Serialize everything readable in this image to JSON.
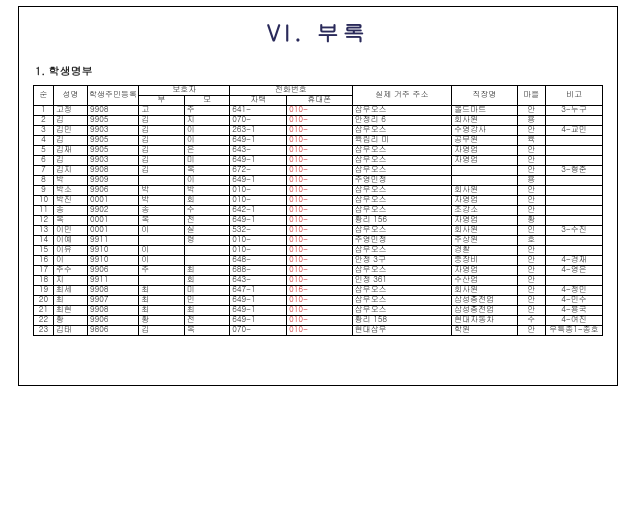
{
  "title": "VI. 부록",
  "section": "1. 학생명부",
  "headers": {
    "num": "순",
    "name": "성명",
    "idno": "학생주민등록번호",
    "guardian": "보호자",
    "gfather": "부",
    "gmother": "모",
    "phone": "전화번호",
    "phone_home": "자택",
    "phone_mobile": "휴대폰",
    "addr": "실제 거주 주소",
    "job": "직장명",
    "village": "마을",
    "note": "비고"
  },
  "rows": [
    {
      "n": "1",
      "nm": "고정",
      "id": "9908",
      "gf": "고",
      "gm": "주",
      "hp": "641-",
      "mp": "010-",
      "ad": "삼우오스",
      "jb": "올드마트",
      "vl": "안",
      "nt": "3-누구"
    },
    {
      "n": "2",
      "nm": "김",
      "id": "9905",
      "gf": "김",
      "gm": "지",
      "hp": "070-",
      "mp": "010-",
      "ad": "안정리 6",
      "jb": "회사원",
      "vl": "용",
      "nt": ""
    },
    {
      "n": "3",
      "nm": "김민",
      "id": "9903",
      "gf": "김",
      "gm": "이",
      "hp": "263-1",
      "mp": "010-",
      "ad": "삼우오스",
      "jb": "수영강사",
      "vl": "안",
      "nt": "4-교민"
    },
    {
      "n": "4",
      "nm": "김",
      "id": "9905",
      "gf": "김",
      "gm": "이",
      "hp": "649-1",
      "mp": "010-",
      "ad": "육림리 미",
      "jb": "공무원",
      "vl": "육",
      "nt": ""
    },
    {
      "n": "5",
      "nm": "김재",
      "id": "9905",
      "gf": "김",
      "gm": "은",
      "hp": "643-",
      "mp": "010-",
      "ad": "삼우오스",
      "jb": "자영업",
      "vl": "안",
      "nt": ""
    },
    {
      "n": "6",
      "nm": "김",
      "id": "9903",
      "gf": "김",
      "gm": "미",
      "hp": "649-1",
      "mp": "010-",
      "ad": "삼우오스",
      "jb": "자영업",
      "vl": "안",
      "nt": ""
    },
    {
      "n": "7",
      "nm": "김지",
      "id": "9908",
      "gf": "김",
      "gm": "옥",
      "hp": "672-",
      "mp": "010-",
      "ad": "삼우오스",
      "jb": "",
      "vl": "안",
      "nt": "3-형준"
    },
    {
      "n": "8",
      "nm": "박",
      "id": "9909",
      "gf": "",
      "gm": "이",
      "hp": "649-1",
      "mp": "010-",
      "ad": "주영민정",
      "jb": "",
      "vl": "용",
      "nt": ""
    },
    {
      "n": "9",
      "nm": "박소",
      "id": "9906",
      "gf": "박",
      "gm": "박",
      "hp": "010-",
      "mp": "010-",
      "ad": "삼우오스",
      "jb": "회사원",
      "vl": "안",
      "nt": ""
    },
    {
      "n": "10",
      "nm": "박진",
      "id": "0001",
      "gf": "박",
      "gm": "회",
      "hp": "010-",
      "mp": "010-",
      "ad": "삼우오스",
      "jb": "자영업",
      "vl": "안",
      "nt": ""
    },
    {
      "n": "11",
      "nm": "송",
      "id": "9902",
      "gf": "송",
      "gm": "수",
      "hp": "642-1",
      "mp": "010-",
      "ad": "삼우오스",
      "jb": "조강소",
      "vl": "안",
      "nt": ""
    },
    {
      "n": "12",
      "nm": "옥",
      "id": "0001",
      "gf": "옥",
      "gm": "전",
      "hp": "649-1",
      "mp": "010-",
      "ad": "황리 156",
      "jb": "자영업",
      "vl": "황",
      "nt": ""
    },
    {
      "n": "13",
      "nm": "이민",
      "id": "0001",
      "gf": "이",
      "gm": "실",
      "hp": "532-",
      "mp": "010-",
      "ad": "삼우오스",
      "jb": "회사원",
      "vl": "인",
      "nt": "3-수진"
    },
    {
      "n": "14",
      "nm": "이예",
      "id": "9911",
      "gf": "",
      "gm": "령",
      "hp": "010-",
      "mp": "010-",
      "ad": "주영민정",
      "jb": "주상원",
      "vl": "호",
      "nt": ""
    },
    {
      "n": "15",
      "nm": "이유",
      "id": "9910",
      "gf": "이",
      "gm": "",
      "hp": "010-",
      "mp": "010-",
      "ad": "삼우오스",
      "jb": "경찰",
      "vl": "안",
      "nt": ""
    },
    {
      "n": "16",
      "nm": "이",
      "id": "9910",
      "gf": "이",
      "gm": "",
      "hp": "648-",
      "mp": "010-",
      "ad": "안정 3구",
      "jb": "중장비",
      "vl": "안",
      "nt": "4-경재"
    },
    {
      "n": "17",
      "nm": "주수",
      "id": "9906",
      "gf": "주",
      "gm": "최",
      "hp": "688-",
      "mp": "010-",
      "ad": "삼우오스",
      "jb": "자영업",
      "vl": "안",
      "nt": "4-영은"
    },
    {
      "n": "18",
      "nm": "지",
      "id": "9911",
      "gf": "",
      "gm": "회",
      "hp": "643-",
      "mp": "010-",
      "ad": "인정 361",
      "jb": "수산업",
      "vl": "안",
      "nt": ""
    },
    {
      "n": "19",
      "nm": "최세",
      "id": "9908",
      "gf": "최",
      "gm": "미",
      "hp": "647-1",
      "mp": "016-",
      "ad": "삼우오스",
      "jb": "회사원",
      "vl": "안",
      "nt": "4-정민"
    },
    {
      "n": "20",
      "nm": "최",
      "id": "9907",
      "gf": "최",
      "gm": "민",
      "hp": "649-1",
      "mp": "010-",
      "ad": "삼우오스",
      "jb": "삼성충전업",
      "vl": "안",
      "nt": "4-민수"
    },
    {
      "n": "21",
      "nm": "최현",
      "id": "9908",
      "gf": "최",
      "gm": "최",
      "hp": "649-1",
      "mp": "010-",
      "ad": "삼우오스",
      "jb": "삼성충전업",
      "vl": "안",
      "nt": "4-용국"
    },
    {
      "n": "22",
      "nm": "황",
      "id": "9906",
      "gf": "황",
      "gm": "전",
      "hp": "649-1",
      "mp": "010-",
      "ad": "황리 158",
      "jb": "현대자동차",
      "vl": "수",
      "nt": "4-여진"
    },
    {
      "n": "23",
      "nm": "김태",
      "id": "9806",
      "gf": "김",
      "gm": "옥",
      "hp": "070-",
      "mp": "010-",
      "ad": "현대삼우",
      "jb": "학원",
      "vl": "안",
      "nt": "우특종1-종호"
    }
  ]
}
